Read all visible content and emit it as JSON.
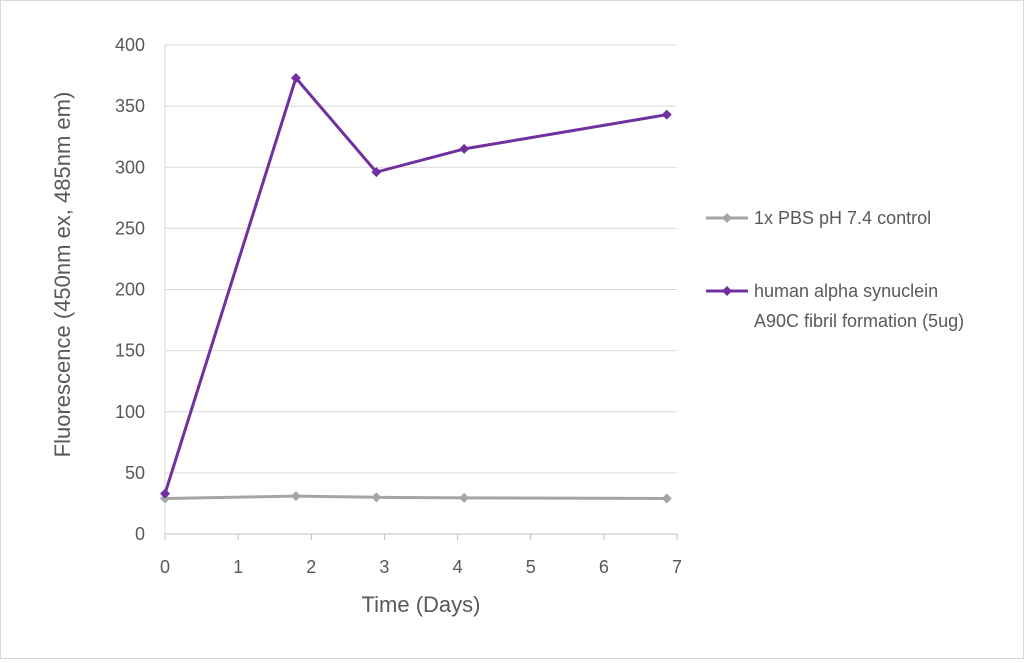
{
  "chart_data": {
    "type": "line",
    "title": "",
    "xlabel": "Time (Days)",
    "ylabel": "Fluorescence (450nm ex, 485nm em)",
    "xlim": [
      0,
      7
    ],
    "ylim": [
      0,
      400
    ],
    "xticks": [
      0,
      1,
      2,
      3,
      4,
      5,
      6,
      7
    ],
    "yticks": [
      0,
      50,
      100,
      150,
      200,
      250,
      300,
      350,
      400
    ],
    "grid": "horizontal",
    "legend_position": "right",
    "series": [
      {
        "name": "1x PBS pH 7.4 control",
        "color": "#a5a5a5",
        "marker": "diamond",
        "x": [
          0,
          1.79,
          2.89,
          4.09,
          6.86
        ],
        "y": [
          29,
          31,
          30,
          29.5,
          29
        ]
      },
      {
        "name": "human alpha synuclein A90C fibril formation (5ug)",
        "legend_lines": [
          "human alpha synuclein",
          "A90C fibril formation (5ug)"
        ],
        "color": "#7030a0",
        "marker": "diamond",
        "x": [
          0,
          1.79,
          2.89,
          4.09,
          6.86
        ],
        "y": [
          33,
          373,
          296,
          315,
          343
        ]
      }
    ]
  }
}
